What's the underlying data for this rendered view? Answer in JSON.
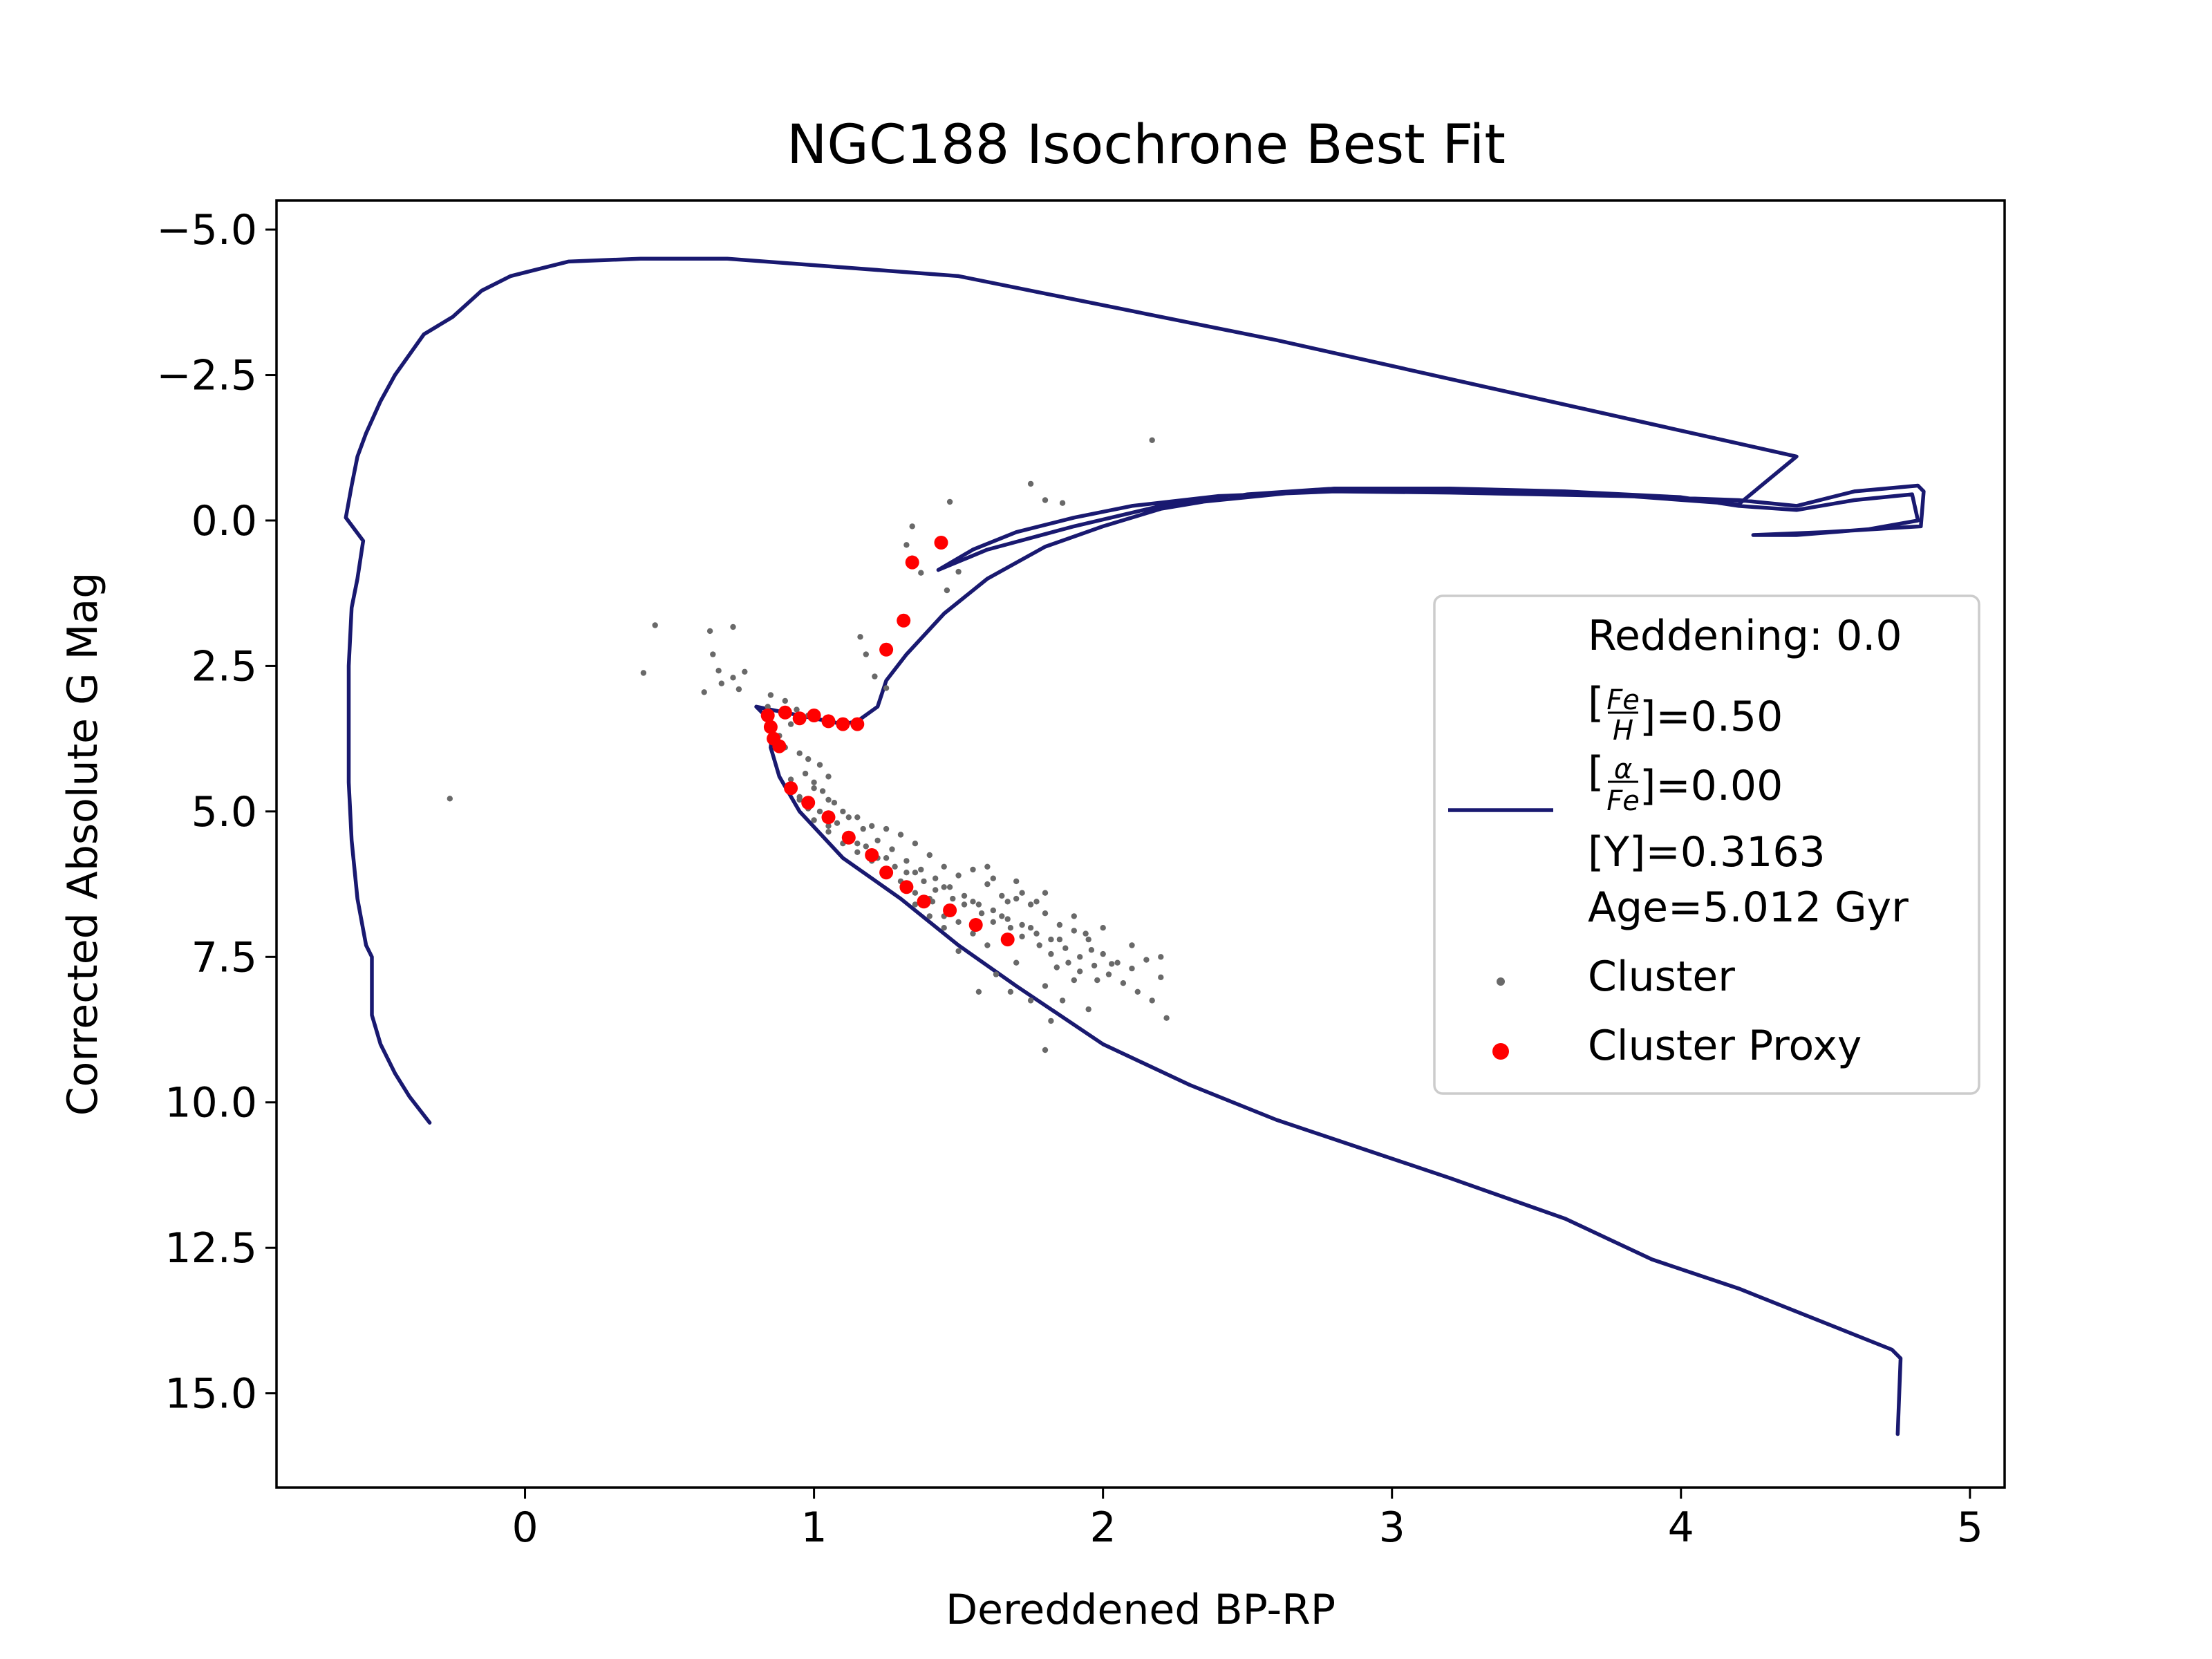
{
  "chart_data": {
    "type": "scatter",
    "title": "NGC188 Isochrone Best Fit",
    "xlabel": "Dereddened BP-RP",
    "ylabel": "Corrected Absolute G Mag",
    "xlim": [
      -0.86,
      5.12
    ],
    "ylim": [
      16.62,
      -5.5
    ],
    "y_inverted": true,
    "grid": false,
    "legend_position": "right",
    "xticks": [
      {
        "value": 0,
        "label": "0"
      },
      {
        "value": 1,
        "label": "1"
      },
      {
        "value": 2,
        "label": "2"
      },
      {
        "value": 3,
        "label": "3"
      },
      {
        "value": 4,
        "label": "4"
      },
      {
        "value": 5,
        "label": "5"
      }
    ],
    "yticks": [
      {
        "value": -5.0,
        "label": "−5.0"
      },
      {
        "value": -2.5,
        "label": "−2.5"
      },
      {
        "value": 0.0,
        "label": "0.0"
      },
      {
        "value": 2.5,
        "label": "2.5"
      },
      {
        "value": 5.0,
        "label": "5.0"
      },
      {
        "value": 7.5,
        "label": "7.5"
      },
      {
        "value": 10.0,
        "label": "10.0"
      },
      {
        "value": 12.5,
        "label": "12.5"
      },
      {
        "value": 15.0,
        "label": "15.0"
      }
    ],
    "legend": {
      "reddening_label": "Reddening: 0.0",
      "feh_value": "]=0.50",
      "alpha_value": "]=0.00",
      "y_text": "[Y]=0.3163",
      "age_text": "Age=5.012 Gyr",
      "cluster_label": "Cluster",
      "proxy_label": "Cluster Proxy"
    },
    "series": [
      {
        "kind": "line",
        "color": "#191970",
        "points": [
          [
            4.75,
            15.7
          ],
          [
            4.76,
            14.4
          ],
          [
            4.73,
            14.25
          ],
          [
            4.2,
            13.2
          ],
          [
            3.9,
            12.7
          ],
          [
            3.75,
            12.35
          ],
          [
            3.6,
            12.0
          ],
          [
            3.2,
            11.3
          ],
          [
            2.9,
            10.8
          ],
          [
            2.6,
            10.3
          ],
          [
            2.3,
            9.7
          ],
          [
            2.0,
            9.0
          ],
          [
            1.7,
            8.0
          ],
          [
            1.5,
            7.3
          ],
          [
            1.3,
            6.5
          ],
          [
            1.1,
            5.8
          ],
          [
            0.95,
            5.0
          ],
          [
            0.88,
            4.4
          ],
          [
            0.85,
            3.9
          ],
          [
            0.86,
            3.5
          ],
          [
            0.8,
            3.2
          ],
          [
            0.9,
            3.3
          ],
          [
            1.0,
            3.4
          ],
          [
            1.1,
            3.5
          ],
          [
            1.15,
            3.45
          ],
          [
            1.22,
            3.2
          ],
          [
            1.25,
            2.75
          ],
          [
            1.32,
            2.3
          ],
          [
            1.45,
            1.6
          ],
          [
            1.6,
            1.0
          ],
          [
            1.8,
            0.45
          ],
          [
            2.0,
            0.1
          ],
          [
            2.2,
            -0.2
          ],
          [
            2.5,
            -0.45
          ],
          [
            2.8,
            -0.55
          ],
          [
            3.2,
            -0.55
          ],
          [
            3.6,
            -0.5
          ],
          [
            4.0,
            -0.4
          ],
          [
            4.2,
            -0.25
          ],
          [
            4.4,
            -0.18
          ],
          [
            4.6,
            -0.35
          ],
          [
            4.8,
            -0.45
          ],
          [
            4.82,
            0.0
          ],
          [
            4.65,
            0.15
          ],
          [
            4.4,
            0.25
          ],
          [
            4.25,
            0.25
          ],
          [
            4.5,
            0.2
          ],
          [
            4.83,
            0.1
          ],
          [
            4.84,
            -0.5
          ],
          [
            4.82,
            -0.6
          ],
          [
            4.6,
            -0.5
          ],
          [
            4.4,
            -0.25
          ],
          [
            4.2,
            -0.35
          ],
          [
            3.8,
            -0.42
          ],
          [
            3.2,
            -0.48
          ],
          [
            2.8,
            -0.5
          ],
          [
            2.4,
            -0.42
          ],
          [
            2.1,
            -0.25
          ],
          [
            1.9,
            -0.05
          ],
          [
            1.7,
            0.2
          ],
          [
            1.55,
            0.5
          ],
          [
            1.43,
            0.85
          ],
          [
            1.6,
            0.5
          ],
          [
            1.9,
            0.1
          ],
          [
            2.2,
            -0.25
          ],
          [
            2.8,
            -0.55
          ],
          [
            3.6,
            -0.5
          ],
          [
            4.2,
            -0.28
          ],
          [
            4.4,
            -1.1
          ],
          [
            2.6,
            -3.1
          ],
          [
            1.5,
            -4.2
          ],
          [
            0.7,
            -4.5
          ],
          [
            0.4,
            -4.5
          ],
          [
            0.15,
            -4.45
          ],
          [
            -0.05,
            -4.2
          ],
          [
            -0.15,
            -3.95
          ],
          [
            -0.25,
            -3.5
          ],
          [
            -0.35,
            -3.2
          ],
          [
            -0.45,
            -2.5
          ],
          [
            -0.5,
            -2.05
          ],
          [
            -0.55,
            -1.5
          ],
          [
            -0.58,
            -1.1
          ],
          [
            -0.6,
            -0.6
          ],
          [
            -0.62,
            -0.05
          ],
          [
            -0.56,
            0.35
          ],
          [
            -0.58,
            1.0
          ],
          [
            -0.6,
            1.5
          ],
          [
            -0.61,
            2.5
          ],
          [
            -0.61,
            3.5
          ],
          [
            -0.61,
            4.5
          ],
          [
            -0.6,
            5.5
          ],
          [
            -0.58,
            6.5
          ],
          [
            -0.55,
            7.3
          ],
          [
            -0.53,
            7.5
          ],
          [
            -0.53,
            8.5
          ],
          [
            -0.5,
            9.0
          ],
          [
            -0.45,
            9.5
          ],
          [
            -0.4,
            9.9
          ],
          [
            -0.33,
            10.35
          ]
        ]
      },
      {
        "kind": "scatter",
        "color": "#696969",
        "points": [
          [
            2.17,
            -1.38
          ],
          [
            1.75,
            -0.63
          ],
          [
            1.8,
            -0.35
          ],
          [
            1.86,
            -0.3
          ],
          [
            1.47,
            -0.32
          ],
          [
            1.34,
            0.1
          ],
          [
            1.34,
            0.65
          ],
          [
            1.37,
            0.9
          ],
          [
            1.32,
            0.42
          ],
          [
            1.5,
            0.88
          ],
          [
            1.46,
            1.2
          ],
          [
            1.16,
            2.0
          ],
          [
            1.18,
            2.3
          ],
          [
            1.21,
            2.68
          ],
          [
            1.25,
            2.88
          ],
          [
            0.45,
            1.8
          ],
          [
            0.72,
            1.83
          ],
          [
            0.64,
            1.9
          ],
          [
            0.41,
            2.62
          ],
          [
            0.65,
            2.3
          ],
          [
            0.67,
            2.58
          ],
          [
            0.62,
            2.95
          ],
          [
            0.68,
            2.8
          ],
          [
            0.72,
            2.7
          ],
          [
            0.76,
            2.6
          ],
          [
            0.74,
            2.9
          ],
          [
            0.84,
            3.2
          ],
          [
            0.85,
            3.0
          ],
          [
            0.9,
            3.1
          ],
          [
            0.94,
            3.25
          ],
          [
            0.98,
            3.35
          ],
          [
            0.92,
            3.5
          ],
          [
            0.88,
            3.7
          ],
          [
            0.9,
            3.9
          ],
          [
            0.95,
            4.0
          ],
          [
            0.98,
            4.1
          ],
          [
            1.02,
            4.2
          ],
          [
            1.05,
            4.4
          ],
          [
            0.93,
            4.6
          ],
          [
            0.95,
            4.8
          ],
          [
            1.0,
            4.6
          ],
          [
            1.05,
            4.8
          ],
          [
            1.1,
            5.0
          ],
          [
            1.15,
            5.1
          ],
          [
            1.2,
            5.25
          ],
          [
            1.25,
            5.3
          ],
          [
            1.3,
            5.4
          ],
          [
            1.35,
            5.55
          ],
          [
            1.4,
            5.75
          ],
          [
            1.45,
            5.95
          ],
          [
            1.5,
            6.1
          ],
          [
            1.55,
            6.0
          ],
          [
            1.6,
            6.25
          ],
          [
            1.65,
            6.45
          ],
          [
            1.7,
            6.5
          ],
          [
            1.75,
            6.6
          ],
          [
            1.8,
            6.75
          ],
          [
            1.85,
            6.95
          ],
          [
            1.9,
            7.05
          ],
          [
            1.95,
            7.2
          ],
          [
            2.0,
            7.45
          ],
          [
            2.05,
            7.6
          ],
          [
            2.1,
            7.7
          ],
          [
            2.15,
            7.55
          ],
          [
            2.2,
            7.85
          ],
          [
            1.9,
            7.9
          ],
          [
            1.86,
            8.25
          ],
          [
            1.95,
            8.4
          ],
          [
            1.8,
            8.0
          ],
          [
            1.7,
            7.6
          ],
          [
            1.6,
            7.3
          ],
          [
            1.55,
            7.1
          ],
          [
            1.5,
            6.9
          ],
          [
            1.45,
            6.8
          ],
          [
            1.4,
            6.5
          ],
          [
            1.35,
            6.4
          ],
          [
            1.3,
            6.2
          ],
          [
            1.25,
            6.0
          ],
          [
            1.2,
            5.85
          ],
          [
            1.15,
            5.7
          ],
          [
            1.1,
            5.55
          ],
          [
            1.05,
            5.35
          ],
          [
            1.0,
            5.15
          ],
          [
            0.98,
            4.95
          ],
          [
            1.02,
            5.0
          ],
          [
            1.08,
            5.2
          ],
          [
            1.12,
            5.4
          ],
          [
            1.18,
            5.6
          ],
          [
            1.22,
            5.8
          ],
          [
            1.28,
            5.95
          ],
          [
            1.32,
            6.05
          ],
          [
            1.38,
            6.2
          ],
          [
            1.42,
            6.35
          ],
          [
            1.48,
            6.5
          ],
          [
            1.52,
            6.6
          ],
          [
            1.58,
            6.75
          ],
          [
            1.62,
            6.9
          ],
          [
            1.68,
            7.0
          ],
          [
            1.72,
            7.15
          ],
          [
            1.78,
            7.3
          ],
          [
            1.82,
            7.45
          ],
          [
            1.88,
            7.6
          ],
          [
            1.92,
            7.75
          ],
          [
            1.98,
            7.9
          ],
          [
            1.85,
            7.2
          ],
          [
            1.75,
            7.0
          ],
          [
            1.65,
            6.8
          ],
          [
            1.55,
            6.55
          ],
          [
            1.45,
            6.3
          ],
          [
            1.35,
            6.05
          ],
          [
            1.25,
            5.8
          ],
          [
            1.15,
            5.55
          ],
          [
            1.05,
            5.25
          ],
          [
            0.95,
            4.75
          ],
          [
            0.92,
            4.45
          ],
          [
            0.97,
            4.35
          ],
          [
            1.0,
            4.5
          ],
          [
            1.03,
            4.65
          ],
          [
            1.07,
            4.85
          ],
          [
            1.12,
            5.1
          ],
          [
            1.17,
            5.3
          ],
          [
            1.22,
            5.5
          ],
          [
            1.27,
            5.65
          ],
          [
            1.32,
            5.85
          ],
          [
            1.37,
            6.0
          ],
          [
            1.42,
            6.15
          ],
          [
            1.47,
            6.3
          ],
          [
            1.52,
            6.45
          ],
          [
            1.57,
            6.6
          ],
          [
            1.62,
            6.7
          ],
          [
            1.67,
            6.85
          ],
          [
            1.72,
            6.95
          ],
          [
            1.77,
            7.1
          ],
          [
            1.82,
            7.2
          ],
          [
            1.87,
            7.35
          ],
          [
            1.92,
            7.5
          ],
          [
            1.97,
            7.65
          ],
          [
            2.02,
            7.8
          ],
          [
            2.07,
            7.95
          ],
          [
            2.12,
            8.1
          ],
          [
            2.17,
            8.25
          ],
          [
            2.22,
            8.55
          ],
          [
            1.57,
            8.1
          ],
          [
            1.63,
            7.8
          ],
          [
            1.5,
            7.4
          ],
          [
            1.45,
            7.0
          ],
          [
            1.4,
            6.8
          ],
          [
            1.35,
            6.6
          ],
          [
            1.6,
            5.95
          ],
          [
            1.7,
            6.2
          ],
          [
            1.8,
            6.4
          ],
          [
            1.9,
            6.8
          ],
          [
            2.0,
            7.0
          ],
          [
            2.1,
            7.3
          ],
          [
            2.2,
            7.5
          ],
          [
            1.75,
            8.25
          ],
          [
            1.82,
            8.6
          ],
          [
            1.68,
            8.1
          ],
          [
            -0.26,
            4.78
          ],
          [
            1.41,
            6.55
          ],
          [
            1.62,
            6.15
          ],
          [
            1.72,
            6.4
          ],
          [
            1.67,
            6.55
          ],
          [
            1.77,
            6.55
          ],
          [
            1.96,
            7.38
          ],
          [
            2.03,
            7.62
          ],
          [
            1.94,
            7.1
          ],
          [
            1.84,
            7.68
          ],
          [
            1.8,
            9.1
          ]
        ]
      },
      {
        "kind": "scatter",
        "color": "#ff0000",
        "points": [
          [
            1.44,
            0.38
          ],
          [
            1.34,
            0.72
          ],
          [
            1.31,
            1.72
          ],
          [
            1.25,
            2.22
          ],
          [
            0.84,
            3.35
          ],
          [
            0.85,
            3.55
          ],
          [
            0.86,
            3.75
          ],
          [
            0.88,
            3.88
          ],
          [
            0.9,
            3.3
          ],
          [
            0.95,
            3.4
          ],
          [
            1.0,
            3.35
          ],
          [
            1.05,
            3.45
          ],
          [
            1.1,
            3.5
          ],
          [
            1.15,
            3.5
          ],
          [
            0.92,
            4.6
          ],
          [
            0.98,
            4.85
          ],
          [
            1.05,
            5.1
          ],
          [
            1.12,
            5.45
          ],
          [
            1.2,
            5.75
          ],
          [
            1.25,
            6.05
          ],
          [
            1.32,
            6.3
          ],
          [
            1.38,
            6.55
          ],
          [
            1.47,
            6.7
          ],
          [
            1.56,
            6.95
          ],
          [
            1.67,
            7.2
          ]
        ]
      }
    ]
  }
}
